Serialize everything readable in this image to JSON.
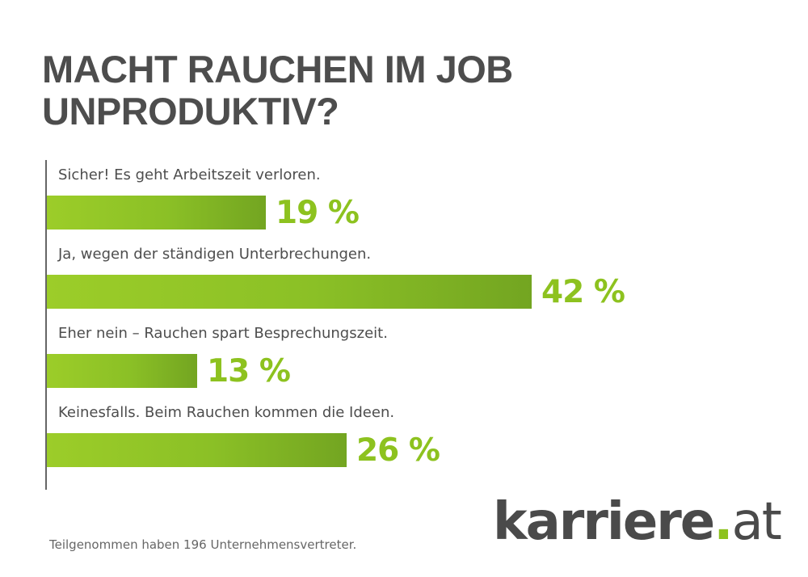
{
  "chart_data": {
    "type": "bar",
    "orientation": "horizontal",
    "title_lines": [
      "MACHT RAUCHEN IM JOB",
      "UNPRODUKTIV?"
    ],
    "categories": [
      "Sicher! Es geht Arbeitszeit verloren.",
      "Ja, wegen der ständigen Unterbrechungen.",
      "Eher nein – Rauchen spart Besprechungszeit.",
      "Keinesfalls. Beim Rauchen kommen die Ideen."
    ],
    "values": [
      19,
      42,
      13,
      26
    ],
    "value_labels": [
      "19 %",
      "42 %",
      "13 %",
      "26 %"
    ],
    "unit": "%",
    "xlim": [
      0,
      42
    ],
    "grid": false,
    "legend": "none"
  },
  "footnote": "Teilgenommen haben 196 Unternehmensvertreter.",
  "logo": {
    "name": "karriere",
    "dot": ".",
    "tld": "at"
  },
  "colors": {
    "bar_light": "#9ccd29",
    "bar_dark": "#73a521",
    "value_text": "#8dc21f",
    "title_text": "#4d4d4d",
    "axis": "#666666"
  }
}
